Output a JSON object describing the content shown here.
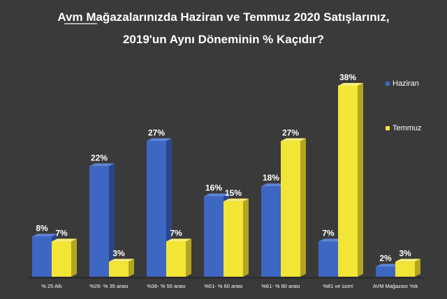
{
  "chart_data": {
    "type": "bar",
    "title_line1": "Avm Mağazalarınızda Haziran ve Temmuz 2020 Satışlarınız,",
    "title_line2": "2019'un Aynı Döneminin % Kaçıdır?",
    "categories": [
      "% 25 Altı",
      "%26- % 35 arası",
      "%36- % 50 arası",
      "%51- % 60 arası",
      "%61- % 80 arası",
      "%81 ve üzeri",
      "AVM Mağazası Yok"
    ],
    "series": [
      {
        "name": "Haziran",
        "values": [
          8,
          22,
          27,
          16,
          18,
          7,
          2
        ],
        "color": "#3e66c3"
      },
      {
        "name": "Temmuz",
        "values": [
          7,
          3,
          7,
          15,
          27,
          38,
          3
        ],
        "color": "#f3e535"
      }
    ],
    "value_suffix": "%",
    "ylim": [
      0,
      38
    ],
    "grid": false,
    "legend_position": "right"
  }
}
